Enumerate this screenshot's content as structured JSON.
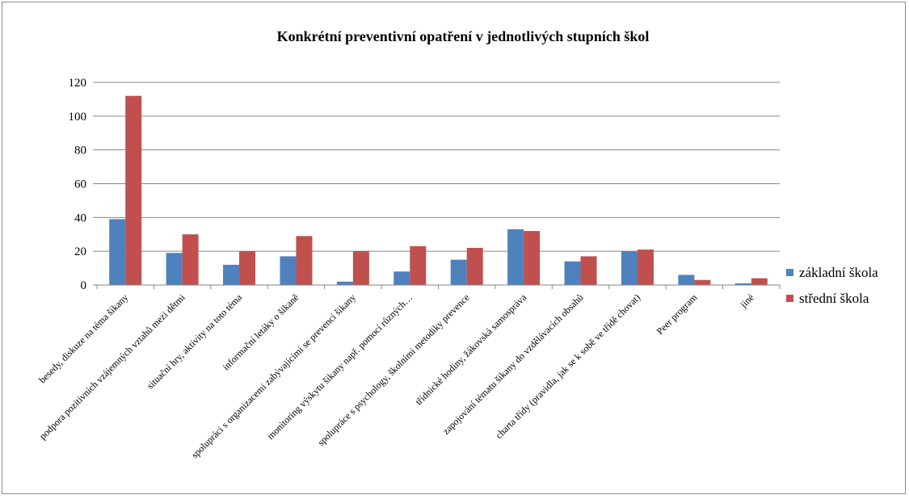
{
  "chart_data": {
    "type": "bar",
    "title": "Konkrétní preventivní opatření v jednotlivých stupních škol",
    "xlabel": "",
    "ylabel": "",
    "ylim": [
      0,
      120
    ],
    "yticks": [
      0,
      20,
      40,
      60,
      80,
      100,
      120
    ],
    "grid": true,
    "legend_position": "right",
    "categories": [
      "besedy, diskuze na téma šikany",
      "podpora pozitivních vzájemných vztahů mezi dětmi",
      "situační hry, aktivity na toto téma",
      "informační letáky o šikaně",
      "spolupráci s organizacemi zabývajícími se prevencí šikany",
      "monitoring výskytu šikany např. pomocí různých…",
      "spolupráce s psychology, školními metodiky prevence",
      "třídnické hodiny, žákovská samospráva",
      "zapojování tématu šikany do vzdělávacích obsahů",
      "charta třídy (pravidla, jak se k sobě ve třídě chovat)",
      "Peer program",
      "jiné"
    ],
    "series": [
      {
        "name": "základní škola",
        "color": "#4f81bd",
        "values": [
          39,
          19,
          12,
          17,
          2,
          8,
          15,
          33,
          14,
          20,
          6,
          1
        ]
      },
      {
        "name": "střední škola",
        "color": "#c0504d",
        "values": [
          112,
          30,
          20,
          29,
          20,
          23,
          22,
          32,
          17,
          21,
          3,
          4
        ]
      }
    ]
  }
}
